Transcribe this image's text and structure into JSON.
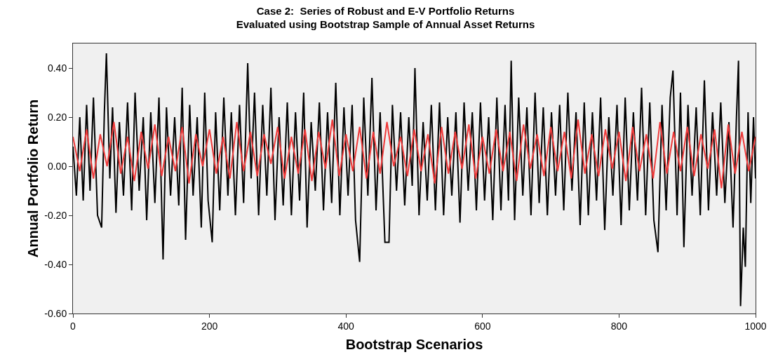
{
  "chart_data": {
    "type": "line",
    "title": "Case 2:  Series of Robust and E-V Portfolio Returns\nEvaluated using Bootstrap Sample of Annual Asset Returns",
    "xlabel": "Bootstrap Scenarios",
    "ylabel": "Annual Portfolio Return",
    "xlim": [
      0,
      1000
    ],
    "xticks": [
      0,
      200,
      400,
      600,
      800,
      1000
    ],
    "ylim": [
      -0.6,
      0.5
    ],
    "yticks": [
      {
        "value": -0.6,
        "label": "-0.60"
      },
      {
        "value": -0.4,
        "label": "-0.40"
      },
      {
        "value": -0.2,
        "label": "-0.20"
      },
      {
        "value": 0,
        "label": "0.00"
      },
      {
        "value": 0.2,
        "label": "0.20"
      },
      {
        "value": 0.4,
        "label": "0.40"
      }
    ],
    "grid": false,
    "marker": "none",
    "line_style": "solid",
    "series": [
      {
        "color": "#000000",
        "x": [
          0,
          5,
          10,
          15,
          20,
          25,
          30,
          36,
          42,
          46,
          49,
          54,
          58,
          63,
          68,
          74,
          80,
          86,
          91,
          97,
          103,
          108,
          114,
          120,
          126,
          132,
          137,
          143,
          149,
          155,
          160,
          165,
          171,
          176,
          182,
          188,
          193,
          198,
          204,
          209,
          215,
          221,
          227,
          232,
          238,
          244,
          250,
          256,
          261,
          266,
          272,
          278,
          284,
          290,
          296,
          302,
          308,
          314,
          320,
          326,
          332,
          338,
          343,
          349,
          355,
          361,
          367,
          373,
          379,
          385,
          391,
          397,
          403,
          409,
          414,
          420,
          426,
          432,
          438,
          444,
          450,
          457,
          463,
          468,
          474,
          480,
          486,
          492,
          497,
          501,
          507,
          513,
          519,
          525,
          531,
          537,
          543,
          549,
          555,
          561,
          567,
          573,
          579,
          585,
          591,
          597,
          603,
          609,
          615,
          621,
          627,
          633,
          638,
          642,
          647,
          653,
          659,
          665,
          671,
          677,
          683,
          689,
          695,
          701,
          707,
          713,
          719,
          725,
          731,
          737,
          743,
          749,
          755,
          761,
          767,
          773,
          779,
          785,
          791,
          797,
          803,
          809,
          815,
          821,
          827,
          833,
          839,
          845,
          851,
          857,
          863,
          869,
          875,
          879,
          885,
          890,
          895,
          901,
          907,
          913,
          919,
          925,
          931,
          937,
          943,
          949,
          955,
          961,
          967,
          972,
          975,
          978,
          982,
          985,
          989,
          993,
          997,
          1000
        ],
        "values": [
          0.08,
          -0.12,
          0.2,
          -0.14,
          0.25,
          -0.1,
          0.28,
          -0.2,
          -0.25,
          0.22,
          0.46,
          -0.05,
          0.24,
          -0.19,
          0.18,
          -0.12,
          0.26,
          -0.18,
          0.3,
          -0.1,
          0.2,
          -0.22,
          0.22,
          -0.15,
          0.28,
          -0.38,
          0.24,
          -0.12,
          0.2,
          -0.16,
          0.32,
          -0.3,
          0.25,
          -0.12,
          0.2,
          -0.25,
          0.3,
          -0.14,
          -0.31,
          0.22,
          -0.18,
          0.28,
          -0.12,
          0.22,
          -0.2,
          0.25,
          -0.15,
          0.42,
          -0.05,
          0.3,
          -0.2,
          0.25,
          -0.12,
          0.32,
          -0.22,
          0.2,
          -0.16,
          0.26,
          -0.2,
          0.22,
          -0.14,
          0.3,
          -0.25,
          0.18,
          -0.1,
          0.26,
          -0.18,
          0.22,
          -0.15,
          0.34,
          -0.2,
          0.24,
          -0.12,
          0.25,
          -0.22,
          -0.39,
          0.28,
          -0.12,
          0.36,
          -0.18,
          0.22,
          -0.31,
          -0.31,
          0.25,
          -0.1,
          0.22,
          -0.16,
          0.2,
          -0.08,
          0.4,
          -0.2,
          0.18,
          -0.14,
          0.25,
          -0.18,
          0.26,
          -0.2,
          0.2,
          -0.12,
          0.22,
          -0.23,
          0.26,
          -0.1,
          0.22,
          -0.18,
          0.26,
          -0.14,
          0.2,
          -0.22,
          0.28,
          -0.18,
          0.25,
          -0.14,
          0.43,
          -0.22,
          0.28,
          -0.12,
          0.24,
          -0.2,
          0.3,
          -0.15,
          0.24,
          -0.2,
          0.22,
          -0.12,
          0.25,
          -0.18,
          0.3,
          -0.1,
          0.22,
          -0.24,
          0.26,
          -0.2,
          0.22,
          -0.14,
          0.28,
          -0.26,
          0.2,
          -0.12,
          0.25,
          -0.24,
          0.28,
          -0.18,
          0.22,
          -0.14,
          0.32,
          -0.2,
          0.26,
          -0.22,
          -0.35,
          0.25,
          -0.18,
          0.28,
          0.39,
          -0.2,
          0.3,
          -0.33,
          0.25,
          -0.12,
          0.24,
          -0.2,
          0.35,
          -0.18,
          0.22,
          -0.12,
          0.26,
          -0.15,
          0.18,
          -0.25,
          0.2,
          0.43,
          -0.57,
          -0.25,
          -0.41,
          0.22,
          -0.15,
          0.2,
          -0.05
        ]
      },
      {
        "color": "#ef3a3a",
        "x": [
          0,
          10,
          20,
          30,
          40,
          50,
          60,
          70,
          80,
          90,
          100,
          110,
          120,
          130,
          140,
          150,
          160,
          170,
          180,
          190,
          200,
          210,
          220,
          230,
          240,
          250,
          260,
          270,
          280,
          290,
          300,
          310,
          320,
          330,
          340,
          350,
          360,
          370,
          380,
          390,
          400,
          410,
          420,
          430,
          440,
          450,
          460,
          470,
          480,
          490,
          500,
          510,
          520,
          530,
          540,
          550,
          560,
          570,
          580,
          590,
          600,
          610,
          620,
          630,
          640,
          650,
          660,
          670,
          680,
          690,
          700,
          710,
          720,
          730,
          740,
          750,
          760,
          770,
          780,
          790,
          800,
          810,
          820,
          830,
          840,
          850,
          860,
          870,
          880,
          890,
          900,
          910,
          920,
          930,
          940,
          950,
          960,
          970,
          980,
          990,
          1000
        ],
        "values": [
          0.12,
          -0.02,
          0.15,
          -0.05,
          0.13,
          0.0,
          0.18,
          -0.03,
          0.12,
          -0.06,
          0.14,
          -0.01,
          0.17,
          -0.04,
          0.12,
          -0.02,
          0.16,
          -0.07,
          0.13,
          0.0,
          0.15,
          -0.03,
          0.12,
          -0.05,
          0.18,
          -0.02,
          0.14,
          -0.04,
          0.13,
          0.01,
          0.16,
          -0.05,
          0.12,
          -0.03,
          0.15,
          -0.06,
          0.14,
          -0.01,
          0.19,
          -0.04,
          0.13,
          -0.02,
          0.16,
          -0.05,
          0.14,
          -0.03,
          0.18,
          0.0,
          0.12,
          -0.04,
          0.15,
          -0.02,
          0.13,
          -0.07,
          0.16,
          -0.03,
          0.14,
          -0.01,
          0.17,
          -0.05,
          0.12,
          -0.03,
          0.15,
          -0.02,
          0.14,
          -0.06,
          0.17,
          -0.01,
          0.13,
          -0.04,
          0.16,
          -0.02,
          0.14,
          -0.05,
          0.19,
          -0.03,
          0.13,
          -0.04,
          0.15,
          -0.01,
          0.14,
          -0.06,
          0.16,
          -0.02,
          0.13,
          -0.05,
          0.18,
          -0.03,
          0.14,
          -0.02,
          0.16,
          -0.04,
          0.13,
          -0.01,
          0.15,
          -0.09,
          0.17,
          -0.03,
          0.14,
          -0.02,
          0.12
        ]
      }
    ]
  }
}
